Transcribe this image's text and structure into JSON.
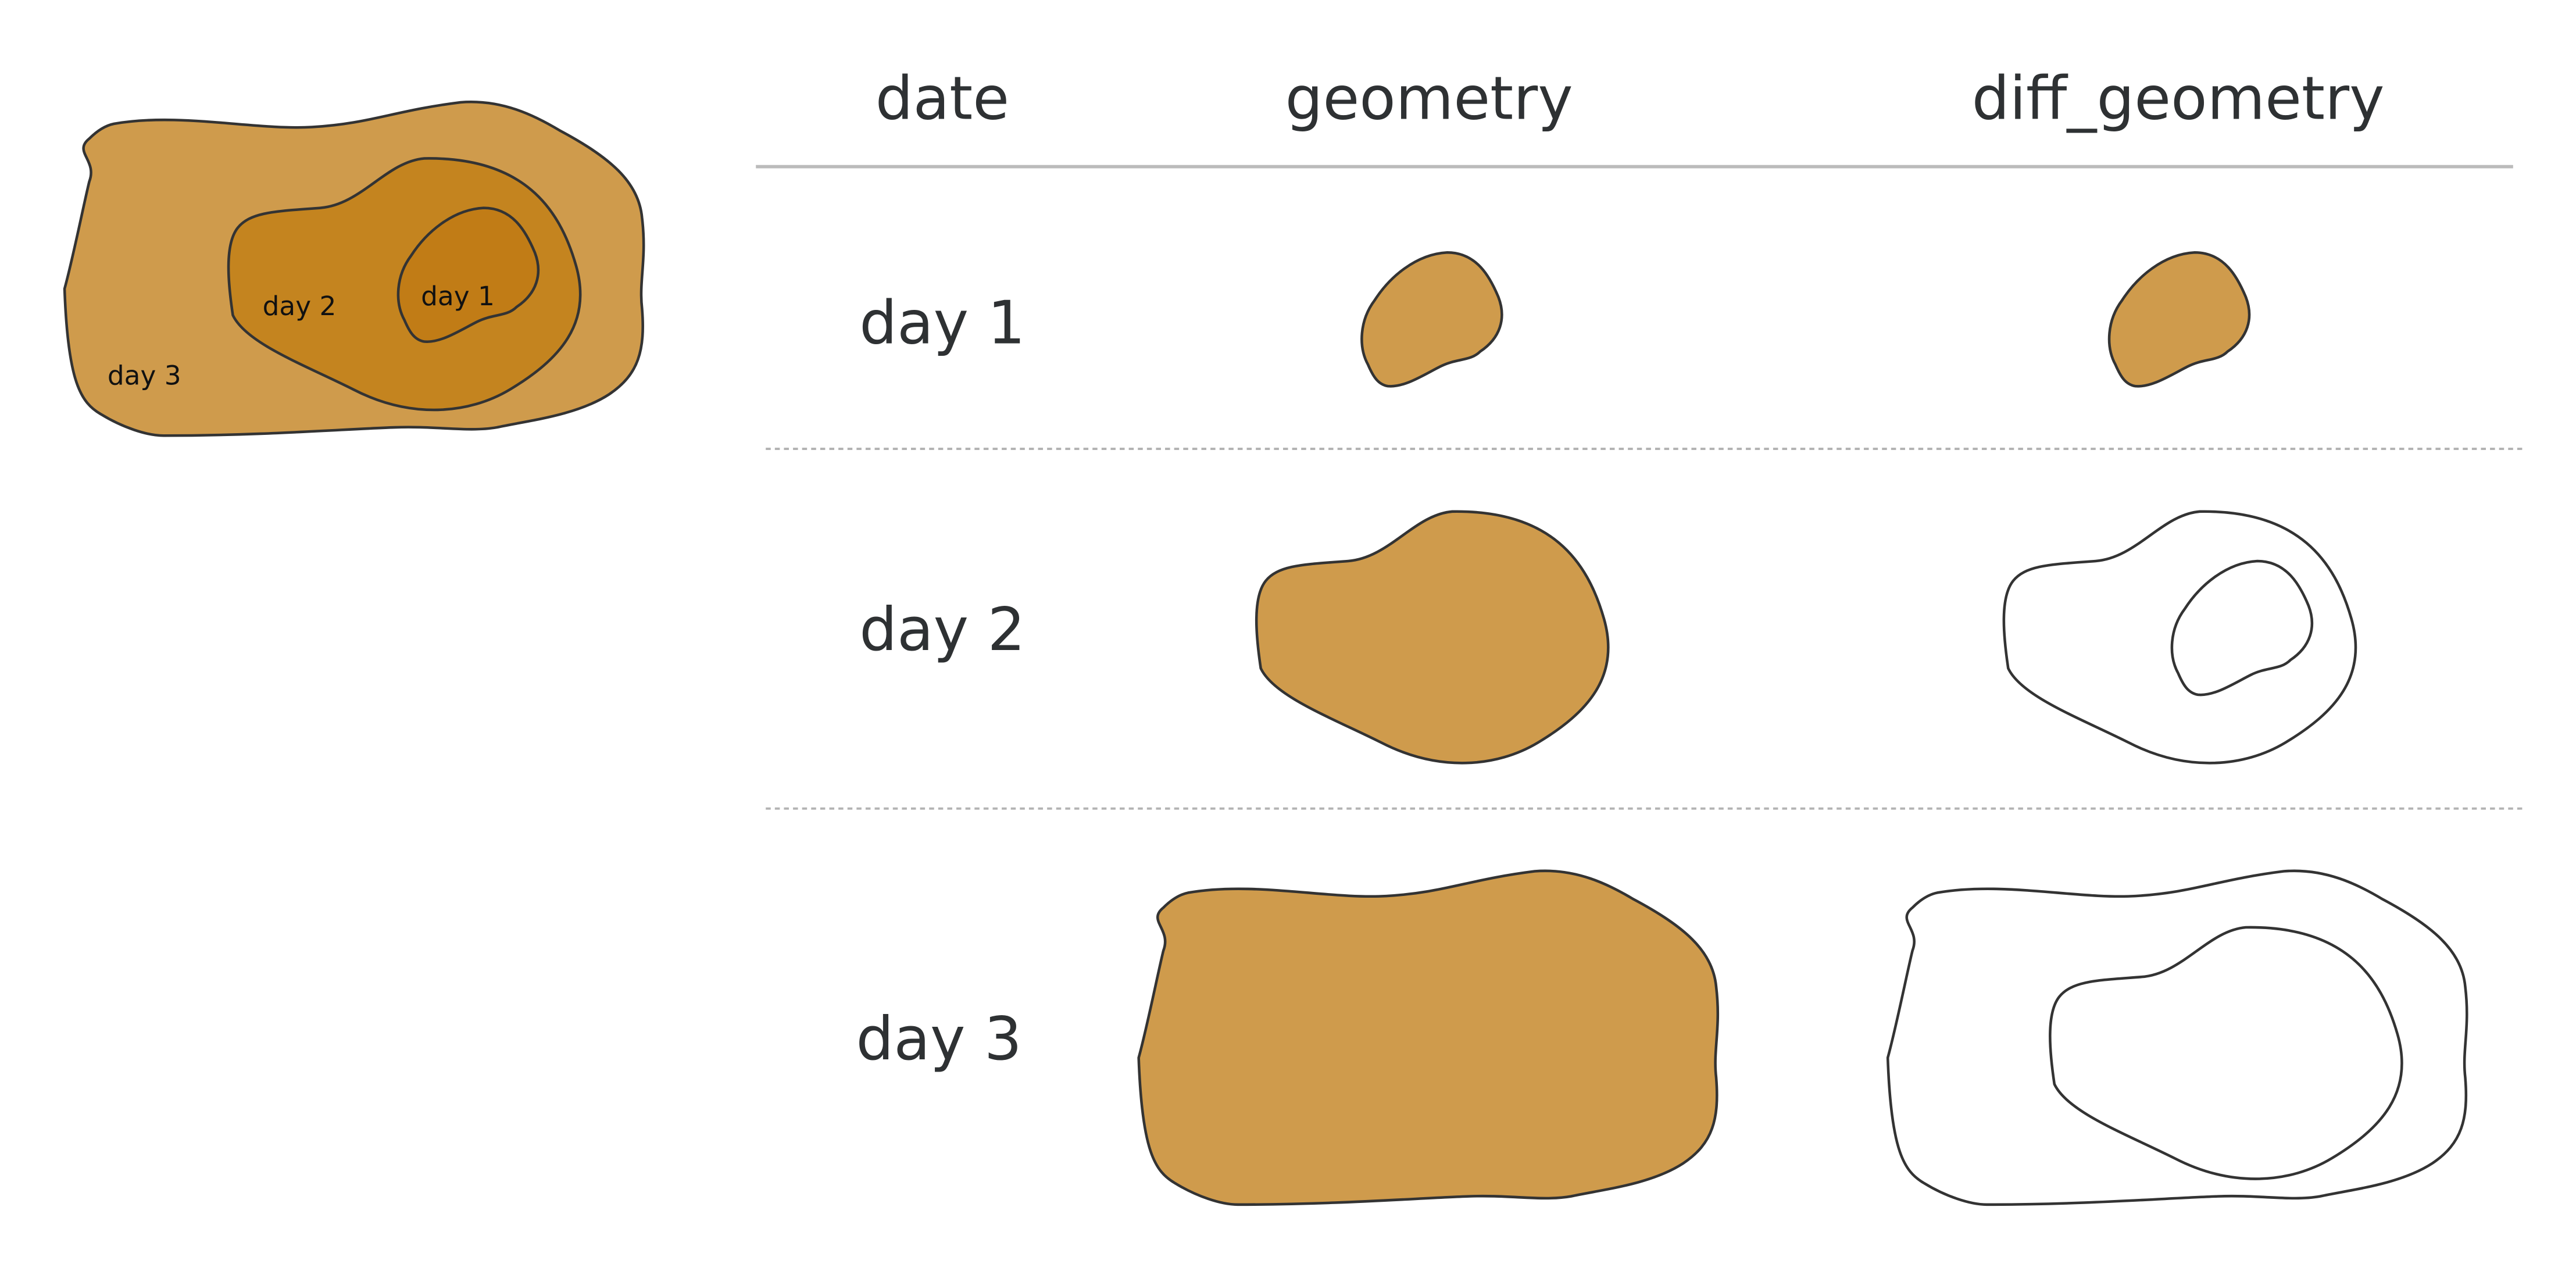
{
  "colors": {
    "fill": "#cf9b4c",
    "day1_inset": "#c17c16",
    "day2_inset": "#c4841f",
    "outline": "#333333",
    "header_rule": "#bbbbbb",
    "row_divider": "#b3b3b3",
    "text": "#2e3133"
  },
  "inset": {
    "labels": [
      "day 3",
      "day 2",
      "day 1"
    ]
  },
  "table": {
    "headers": [
      "date",
      "geometry",
      "diff_geometry"
    ],
    "rows": [
      {
        "date": "day 1"
      },
      {
        "date": "day 2"
      },
      {
        "date": "day 3"
      }
    ]
  }
}
